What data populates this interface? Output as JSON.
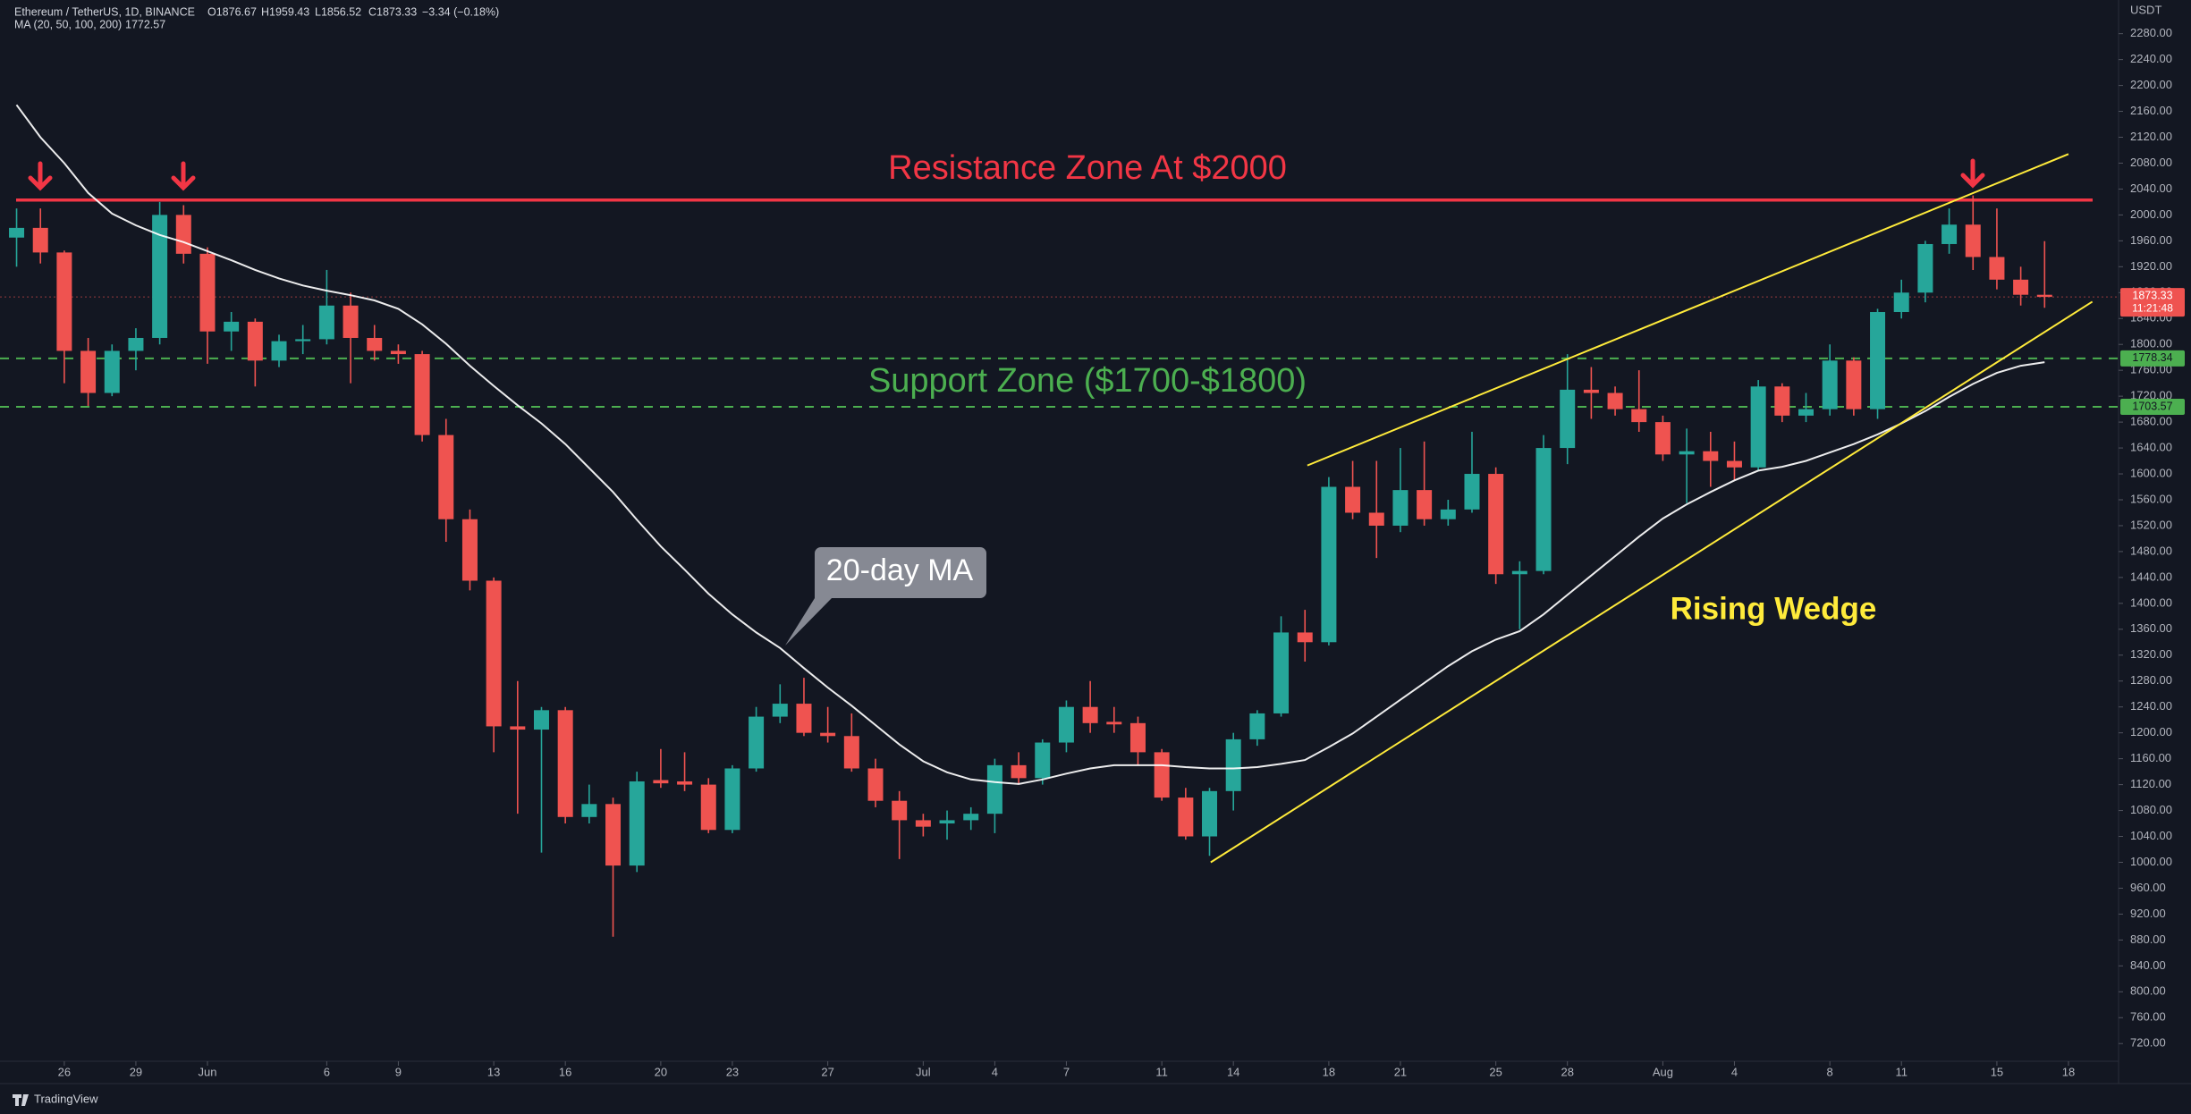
{
  "header": {
    "symbol": "Ethereum / TetherUS, 1D, BINANCE",
    "ohlc": [
      "O1876.67",
      "H1959.43",
      "L1856.52",
      "C1873.33",
      "−3.34 (−0.18%)"
    ],
    "currency": "USDT",
    "brand": "TradingView"
  },
  "chart_data": {
    "type": "candlestick",
    "open": [
      1965,
      1980,
      1942,
      1790,
      1725,
      1790,
      1810,
      2000,
      1940,
      1820,
      1835,
      1775,
      1805,
      1808,
      1860,
      1810,
      1790,
      1785,
      1660,
      1530,
      1435,
      1210,
      1205,
      1235,
      1070,
      1090,
      995,
      1127,
      1125,
      1120,
      1050,
      1145,
      1225,
      1245,
      1200,
      1195,
      1145,
      1095,
      1065,
      1060,
      1065,
      1075,
      1150,
      1130,
      1185,
      1240,
      1217,
      1215,
      1170,
      1100,
      1040,
      1110,
      1190,
      1230,
      1355,
      1340,
      1580,
      1540,
      1520,
      1575,
      1530,
      1545,
      1600,
      1445,
      1450,
      1640,
      1730,
      1725,
      1700,
      1680,
      1630,
      1635,
      1620,
      1610,
      1735,
      1690,
      1700,
      1775,
      1700,
      1850,
      1880,
      1955,
      1985,
      1935,
      1900,
      1876.67
    ],
    "high": [
      2010,
      2010,
      1945,
      1810,
      1800,
      1825,
      2020,
      2015,
      1950,
      1850,
      1840,
      1815,
      1830,
      1915,
      1880,
      1830,
      1800,
      1790,
      1685,
      1545,
      1440,
      1280,
      1240,
      1240,
      1120,
      1100,
      1140,
      1175,
      1170,
      1130,
      1150,
      1240,
      1275,
      1285,
      1240,
      1230,
      1160,
      1110,
      1075,
      1080,
      1085,
      1160,
      1170,
      1190,
      1250,
      1280,
      1240,
      1225,
      1175,
      1115,
      1115,
      1200,
      1235,
      1380,
      1390,
      1595,
      1620,
      1620,
      1640,
      1650,
      1560,
      1665,
      1610,
      1465,
      1660,
      1785,
      1765,
      1735,
      1760,
      1690,
      1670,
      1665,
      1650,
      1745,
      1740,
      1725,
      1800,
      1780,
      1855,
      1900,
      1960,
      2010,
      2030,
      2010,
      1920,
      1959.43
    ],
    "low": [
      1920,
      1925,
      1740,
      1705,
      1720,
      1760,
      1800,
      1925,
      1770,
      1790,
      1735,
      1765,
      1785,
      1800,
      1740,
      1775,
      1770,
      1650,
      1495,
      1420,
      1170,
      1075,
      1015,
      1060,
      1060,
      885,
      985,
      1115,
      1110,
      1045,
      1045,
      1140,
      1215,
      1195,
      1185,
      1140,
      1085,
      1005,
      1040,
      1035,
      1050,
      1045,
      1120,
      1120,
      1170,
      1200,
      1200,
      1150,
      1095,
      1035,
      1010,
      1080,
      1180,
      1225,
      1310,
      1335,
      1530,
      1470,
      1510,
      1520,
      1520,
      1540,
      1430,
      1360,
      1445,
      1615,
      1685,
      1690,
      1665,
      1620,
      1555,
      1580,
      1590,
      1605,
      1680,
      1680,
      1690,
      1690,
      1685,
      1840,
      1865,
      1940,
      1915,
      1885,
      1860,
      1856.52
    ],
    "close": [
      1980,
      1942,
      1790,
      1725,
      1790,
      1810,
      2000,
      1940,
      1820,
      1835,
      1775,
      1805,
      1808,
      1860,
      1810,
      1790,
      1785,
      1660,
      1530,
      1435,
      1210,
      1205,
      1235,
      1070,
      1090,
      995,
      1125,
      1122,
      1120,
      1050,
      1145,
      1225,
      1245,
      1200,
      1195,
      1145,
      1095,
      1065,
      1055,
      1065,
      1075,
      1150,
      1130,
      1185,
      1240,
      1215,
      1213,
      1170,
      1100,
      1040,
      1110,
      1190,
      1230,
      1355,
      1340,
      1580,
      1540,
      1520,
      1575,
      1530,
      1545,
      1600,
      1445,
      1450,
      1640,
      1730,
      1725,
      1700,
      1680,
      1630,
      1635,
      1620,
      1610,
      1735,
      1690,
      1700,
      1775,
      1700,
      1850,
      1880,
      1955,
      1985,
      1935,
      1900,
      1876.67,
      1873.33
    ],
    "up_color": "#26a69a",
    "down_color": "#ef5350",
    "ma": {
      "name": "MA (20, 50, 100, 200)",
      "color": "#ffffff",
      "values": [
        2170,
        2120,
        2080,
        2034,
        2002,
        1984,
        1969,
        1958,
        1944,
        1930,
        1915,
        1902,
        1891,
        1883,
        1876,
        1868,
        1855,
        1831,
        1801,
        1767,
        1736,
        1706,
        1678,
        1646,
        1609,
        1572,
        1529,
        1488,
        1452,
        1415,
        1383,
        1355,
        1331,
        1300,
        1270,
        1242,
        1212,
        1182,
        1156,
        1139,
        1128,
        1124,
        1121,
        1128,
        1137,
        1145,
        1150,
        1150,
        1150,
        1147,
        1145,
        1145,
        1147,
        1152,
        1158,
        1178,
        1199,
        1225,
        1251,
        1277,
        1303,
        1326,
        1344,
        1357,
        1383,
        1413,
        1443,
        1473,
        1503,
        1531,
        1553,
        1572,
        1590,
        1605,
        1611,
        1620,
        1633,
        1646,
        1661,
        1678,
        1697,
        1719,
        1739,
        1756,
        1767,
        1772.57
      ]
    },
    "xlim": [
      -0.695,
      88.1
    ],
    "xticks": [
      {
        "value": 2,
        "label": "26"
      },
      {
        "value": 5,
        "label": "29"
      },
      {
        "value": 8,
        "label": "Jun"
      },
      {
        "value": 13,
        "label": "6"
      },
      {
        "value": 16,
        "label": "9"
      },
      {
        "value": 20,
        "label": "13"
      },
      {
        "value": 23,
        "label": "16"
      },
      {
        "value": 27,
        "label": "20"
      },
      {
        "value": 30,
        "label": "23"
      },
      {
        "value": 34,
        "label": "27"
      },
      {
        "value": 38,
        "label": "Jul"
      },
      {
        "value": 41,
        "label": "4"
      },
      {
        "value": 44,
        "label": "7"
      },
      {
        "value": 48,
        "label": "11"
      },
      {
        "value": 51,
        "label": "14"
      },
      {
        "value": 55,
        "label": "18"
      },
      {
        "value": 58,
        "label": "21"
      },
      {
        "value": 62,
        "label": "25"
      },
      {
        "value": 65,
        "label": "28"
      },
      {
        "value": 69,
        "label": "Aug"
      },
      {
        "value": 72,
        "label": "4"
      },
      {
        "value": 76,
        "label": "8"
      },
      {
        "value": 79,
        "label": "11"
      },
      {
        "value": 83,
        "label": "15"
      },
      {
        "value": 86,
        "label": "18"
      }
    ],
    "ylim": [
      692,
      2332
    ],
    "yticks": [
      {
        "value": 720,
        "label": "720.00"
      },
      {
        "value": 760,
        "label": "760.00"
      },
      {
        "value": 800,
        "label": "800.00"
      },
      {
        "value": 840,
        "label": "840.00"
      },
      {
        "value": 880,
        "label": "880.00"
      },
      {
        "value": 920,
        "label": "920.00"
      },
      {
        "value": 960,
        "label": "960.00"
      },
      {
        "value": 1000,
        "label": "1000.00"
      },
      {
        "value": 1040,
        "label": "1040.00"
      },
      {
        "value": 1080,
        "label": "1080.00"
      },
      {
        "value": 1120,
        "label": "1120.00"
      },
      {
        "value": 1160,
        "label": "1160.00"
      },
      {
        "value": 1200,
        "label": "1200.00"
      },
      {
        "value": 1240,
        "label": "1240.00"
      },
      {
        "value": 1280,
        "label": "1280.00"
      },
      {
        "value": 1320,
        "label": "1320.00"
      },
      {
        "value": 1360,
        "label": "1360.00"
      },
      {
        "value": 1400,
        "label": "1400.00"
      },
      {
        "value": 1440,
        "label": "1440.00"
      },
      {
        "value": 1480,
        "label": "1480.00"
      },
      {
        "value": 1520,
        "label": "1520.00"
      },
      {
        "value": 1560,
        "label": "1560.00"
      },
      {
        "value": 1600,
        "label": "1600.00"
      },
      {
        "value": 1640,
        "label": "1640.00"
      },
      {
        "value": 1680,
        "label": "1680.00"
      },
      {
        "value": 1720,
        "label": "1720.00"
      },
      {
        "value": 1760,
        "label": "1760.00"
      },
      {
        "value": 1800,
        "label": "1800.00"
      },
      {
        "value": 1840,
        "label": "1840.00"
      },
      {
        "value": 1880,
        "label": "1880.00"
      },
      {
        "value": 1920,
        "label": "1920.00"
      },
      {
        "value": 1960,
        "label": "1960.00"
      },
      {
        "value": 2000,
        "label": "2000.00"
      },
      {
        "value": 2040,
        "label": "2040.00"
      },
      {
        "value": 2080,
        "label": "2080.00"
      },
      {
        "value": 2120,
        "label": "2120.00"
      },
      {
        "value": 2160,
        "label": "2160.00"
      },
      {
        "value": 2200,
        "label": "2200.00"
      },
      {
        "value": 2240,
        "label": "2240.00"
      },
      {
        "value": 2280,
        "label": "2280.00"
      }
    ],
    "resistance": 2023,
    "resistance_color": "#f23645",
    "support": [
      1778.34,
      1703.57
    ],
    "support_color": "#4caf50",
    "countdown": "11:21:48",
    "trendlines": [
      {
        "color": "#ffeb3b",
        "points": [
          [
            54.1,
            1613
          ],
          [
            86,
            2094
          ]
        ]
      },
      {
        "color": "#ffeb3b",
        "points": [
          [
            50.05,
            1000
          ],
          [
            87,
            1866
          ]
        ]
      }
    ],
    "annotations": {
      "resistance": "Resistance Zone At $2000",
      "support": "Support Zone ($1700-$1800)",
      "ma": "20-day MA",
      "wedge": "Rising Wedge"
    }
  }
}
